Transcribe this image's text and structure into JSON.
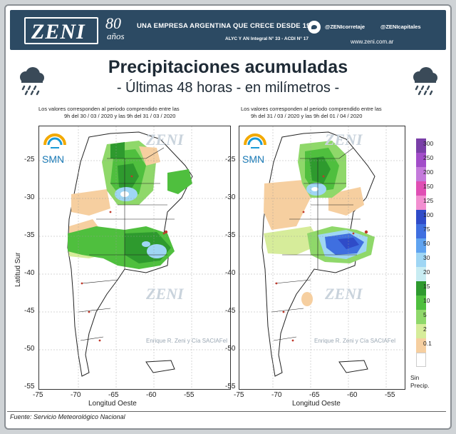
{
  "header": {
    "logo": "ZENI",
    "anniversary_number": "80",
    "anniversary_word": "años",
    "tagline": "UNA EMPRESA ARGENTINA QUE CRECE DESDE 1940",
    "registration": "ALYC Y AN Integral N° 33 - ACDI N° 17",
    "social_primary": "@ZENIcorretaje",
    "social_secondary": "@ZENIcapitales",
    "website": "www.zeni.com.ar"
  },
  "title": "Precipitaciones acumuladas",
  "subtitle": "- Últimas 48 horas - en milímetros -",
  "panels": [
    {
      "note_line1": "Los valores corresponden al periodo comprendido entre las",
      "note_line2": "9h del 30 / 03 / 2020  y las 9h del 31 / 03 / 2020"
    },
    {
      "note_line1": "Los valores corresponden al periodo comprendido entre las",
      "note_line2": "9h del 31 / 03 / 2020  y las 9h del 01 / 04 / 2020"
    }
  ],
  "map_labels": {
    "smn": "SMN",
    "xlabel": "Longitud Oeste",
    "ylabel": "Latitud Sur",
    "x_ticks": [
      "-75",
      "-70",
      "-65",
      "-60",
      "-55"
    ],
    "y_ticks": [
      "-25",
      "-30",
      "-35",
      "-40",
      "-45",
      "-50",
      "-55"
    ],
    "watermark_logo": "ZENI",
    "watermark_text": "Enrique R. Zeni y Cía SACIAFeI"
  },
  "legend": {
    "values": [
      "300",
      "250",
      "200",
      "150",
      "125",
      "100",
      "75",
      "50",
      "30",
      "20",
      "15",
      "10",
      "5",
      "2",
      "0.1"
    ],
    "colors": [
      "#7a3fa8",
      "#a24dc9",
      "#c47adb",
      "#e04fb4",
      "#f28fd0",
      "#2f4bc8",
      "#3f6fe0",
      "#5fa3f0",
      "#9fd6f4",
      "#c8ecf2",
      "#2e9a2e",
      "#4fbf3e",
      "#8fd86a",
      "#d6ec9a",
      "#f6cfa0"
    ],
    "no_precip_line1": "Sin",
    "no_precip_line2": "Precip."
  },
  "source": "Fuente: Servicio Meteorológico Nacional",
  "colors": {
    "header_bg": "#2c4a63",
    "dry": "#f6cfa0",
    "light_green": "#8fd86a",
    "green": "#2e9a2e",
    "cyan": "#9fd6f4",
    "blue": "#3f6fe0"
  }
}
